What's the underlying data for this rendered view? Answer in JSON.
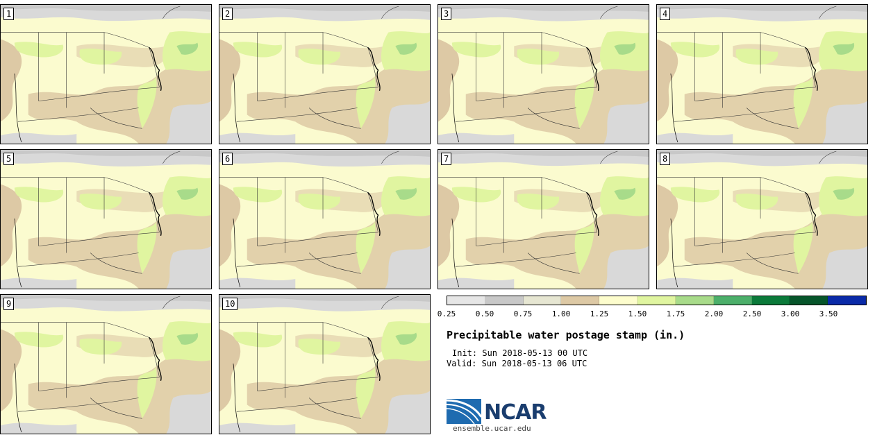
{
  "panels": [
    {
      "label": "1"
    },
    {
      "label": "2"
    },
    {
      "label": "3"
    },
    {
      "label": "4"
    },
    {
      "label": "5"
    },
    {
      "label": "6"
    },
    {
      "label": "7"
    },
    {
      "label": "8"
    },
    {
      "label": "9"
    },
    {
      "label": "10"
    }
  ],
  "colorbar": {
    "colors": [
      "#e6e6e6",
      "#c8c8c8",
      "#e6e6d2",
      "#ddc9a5",
      "#fdfdcd",
      "#e0f5a0",
      "#a8db8a",
      "#4caf6a",
      "#0b7a3a",
      "#06552a",
      "#0a2aa8"
    ],
    "ticks": [
      "0.25",
      "0.50",
      "0.75",
      "1.00",
      "1.25",
      "1.50",
      "1.75",
      "2.00",
      "2.50",
      "3.00",
      "3.50"
    ]
  },
  "title": "Precipitable water postage stamp (in.)",
  "init": "Init: Sun 2018-05-13 00 UTC",
  "valid": "Valid: Sun 2018-05-13 06 UTC",
  "logo": {
    "text": "NCAR",
    "site": "ensemble.ucar.edu"
  },
  "map_colors": {
    "land_base": "#fbfbcf",
    "tan": "#ddc9a5",
    "gray": "#c8c8c8",
    "lightgray": "#d9d9d9",
    "green": "#e0f5a0",
    "green2": "#a8db8a"
  }
}
